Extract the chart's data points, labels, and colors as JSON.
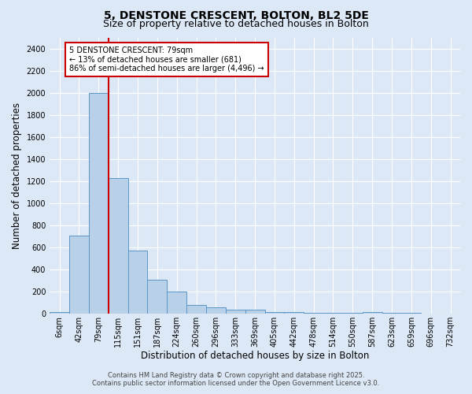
{
  "title1": "5, DENSTONE CRESCENT, BOLTON, BL2 5DE",
  "title2": "Size of property relative to detached houses in Bolton",
  "xlabel": "Distribution of detached houses by size in Bolton",
  "ylabel": "Number of detached properties",
  "annotation_title": "5 DENSTONE CRESCENT: 79sqm",
  "annotation_line2": "← 13% of detached houses are smaller (681)",
  "annotation_line3": "86% of semi-detached houses are larger (4,496) →",
  "footer1": "Contains HM Land Registry data © Crown copyright and database right 2025.",
  "footer2": "Contains public sector information licensed under the Open Government Licence v3.0.",
  "bin_labels": [
    "6sqm",
    "42sqm",
    "79sqm",
    "115sqm",
    "151sqm",
    "187sqm",
    "224sqm",
    "260sqm",
    "296sqm",
    "333sqm",
    "369sqm",
    "405sqm",
    "442sqm",
    "478sqm",
    "514sqm",
    "550sqm",
    "587sqm",
    "623sqm",
    "659sqm",
    "696sqm",
    "732sqm"
  ],
  "bar_values": [
    15,
    710,
    2000,
    1230,
    575,
    310,
    200,
    80,
    55,
    38,
    38,
    15,
    15,
    10,
    5,
    5,
    15,
    5,
    5,
    0,
    0
  ],
  "bar_color": "#b8d0e8",
  "bar_edge_color": "#5a96c8",
  "red_line_index": 2,
  "ylim": [
    0,
    2500
  ],
  "yticks": [
    0,
    200,
    400,
    600,
    800,
    1000,
    1200,
    1400,
    1600,
    1800,
    2000,
    2200,
    2400
  ],
  "background_color": "#dce8f5",
  "grid_color": "#ffffff",
  "annotation_box_color": "#ffffff",
  "annotation_box_edge": "#cc0000",
  "red_line_color": "#cc0000",
  "title_fontsize": 10,
  "subtitle_fontsize": 9,
  "axis_label_fontsize": 8.5,
  "tick_fontsize": 7,
  "annotation_fontsize": 7,
  "footer_fontsize": 6
}
